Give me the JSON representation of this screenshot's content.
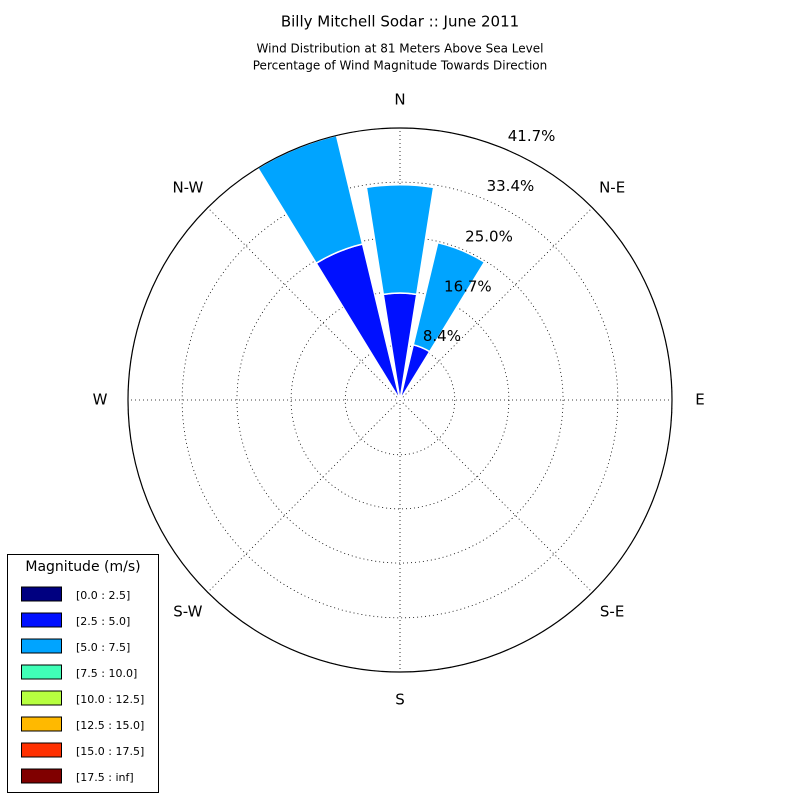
{
  "chart_data": {
    "type": "windrose",
    "title": "Billy Mitchell Sodar :: June 2011",
    "subtitle": [
      "Wind Distribution at 81 Meters Above Sea Level",
      "Percentage of Wind Magnitude Towards Direction"
    ],
    "categories": [
      "N",
      null,
      "N-E",
      null,
      "E",
      null,
      "S-E",
      null,
      "S",
      null,
      "S-W",
      null,
      "W",
      null,
      "N-W",
      null
    ],
    "rlim": [
      0,
      41.7
    ],
    "rticks": [
      {
        "value": 8.4,
        "label": "8.4%"
      },
      {
        "value": 16.7,
        "label": "16.7%"
      },
      {
        "value": 25.0,
        "label": "25.0%"
      },
      {
        "value": 33.4,
        "label": "33.4%"
      },
      {
        "value": 41.7,
        "label": "41.7%"
      }
    ],
    "grid": true,
    "legend_title": "Magnitude (m/s)",
    "legend_position": "lower left",
    "series": [
      {
        "name": "[0.0 : 2.5]",
        "color": "#000080",
        "values": [
          0,
          0,
          0,
          0,
          0,
          0,
          0,
          0,
          0,
          0,
          0,
          0,
          0,
          0,
          0,
          0
        ]
      },
      {
        "name": "[2.5 : 5.0]",
        "color": "#0010ff",
        "values": [
          16.4,
          8.7,
          0,
          0,
          0,
          0,
          0,
          0,
          0,
          0,
          0,
          0,
          0,
          0,
          0,
          24.6
        ]
      },
      {
        "name": "[5.0 : 7.5]",
        "color": "#00a4ff",
        "values": [
          16.6,
          16.1,
          0,
          0,
          0,
          0,
          0,
          0,
          0,
          0,
          0,
          0,
          0,
          0,
          0,
          17.1
        ]
      },
      {
        "name": "[7.5 : 10.0]",
        "color": "#40ffb7",
        "values": [
          0,
          0,
          0,
          0,
          0,
          0,
          0,
          0,
          0,
          0,
          0,
          0,
          0,
          0,
          0,
          0
        ]
      },
      {
        "name": "[10.0 : 12.5]",
        "color": "#b7ff40",
        "values": [
          0,
          0,
          0,
          0,
          0,
          0,
          0,
          0,
          0,
          0,
          0,
          0,
          0,
          0,
          0,
          0
        ]
      },
      {
        "name": "[12.5 : 15.0]",
        "color": "#ffb900",
        "values": [
          0,
          0,
          0,
          0,
          0,
          0,
          0,
          0,
          0,
          0,
          0,
          0,
          0,
          0,
          0,
          0
        ]
      },
      {
        "name": "[15.0 : 17.5]",
        "color": "#ff3000",
        "values": [
          0,
          0,
          0,
          0,
          0,
          0,
          0,
          0,
          0,
          0,
          0,
          0,
          0,
          0,
          0,
          0
        ]
      },
      {
        "name": "[17.5 : inf]",
        "color": "#800000",
        "values": [
          0,
          0,
          0,
          0,
          0,
          0,
          0,
          0,
          0,
          0,
          0,
          0,
          0,
          0,
          0,
          0
        ]
      }
    ]
  }
}
